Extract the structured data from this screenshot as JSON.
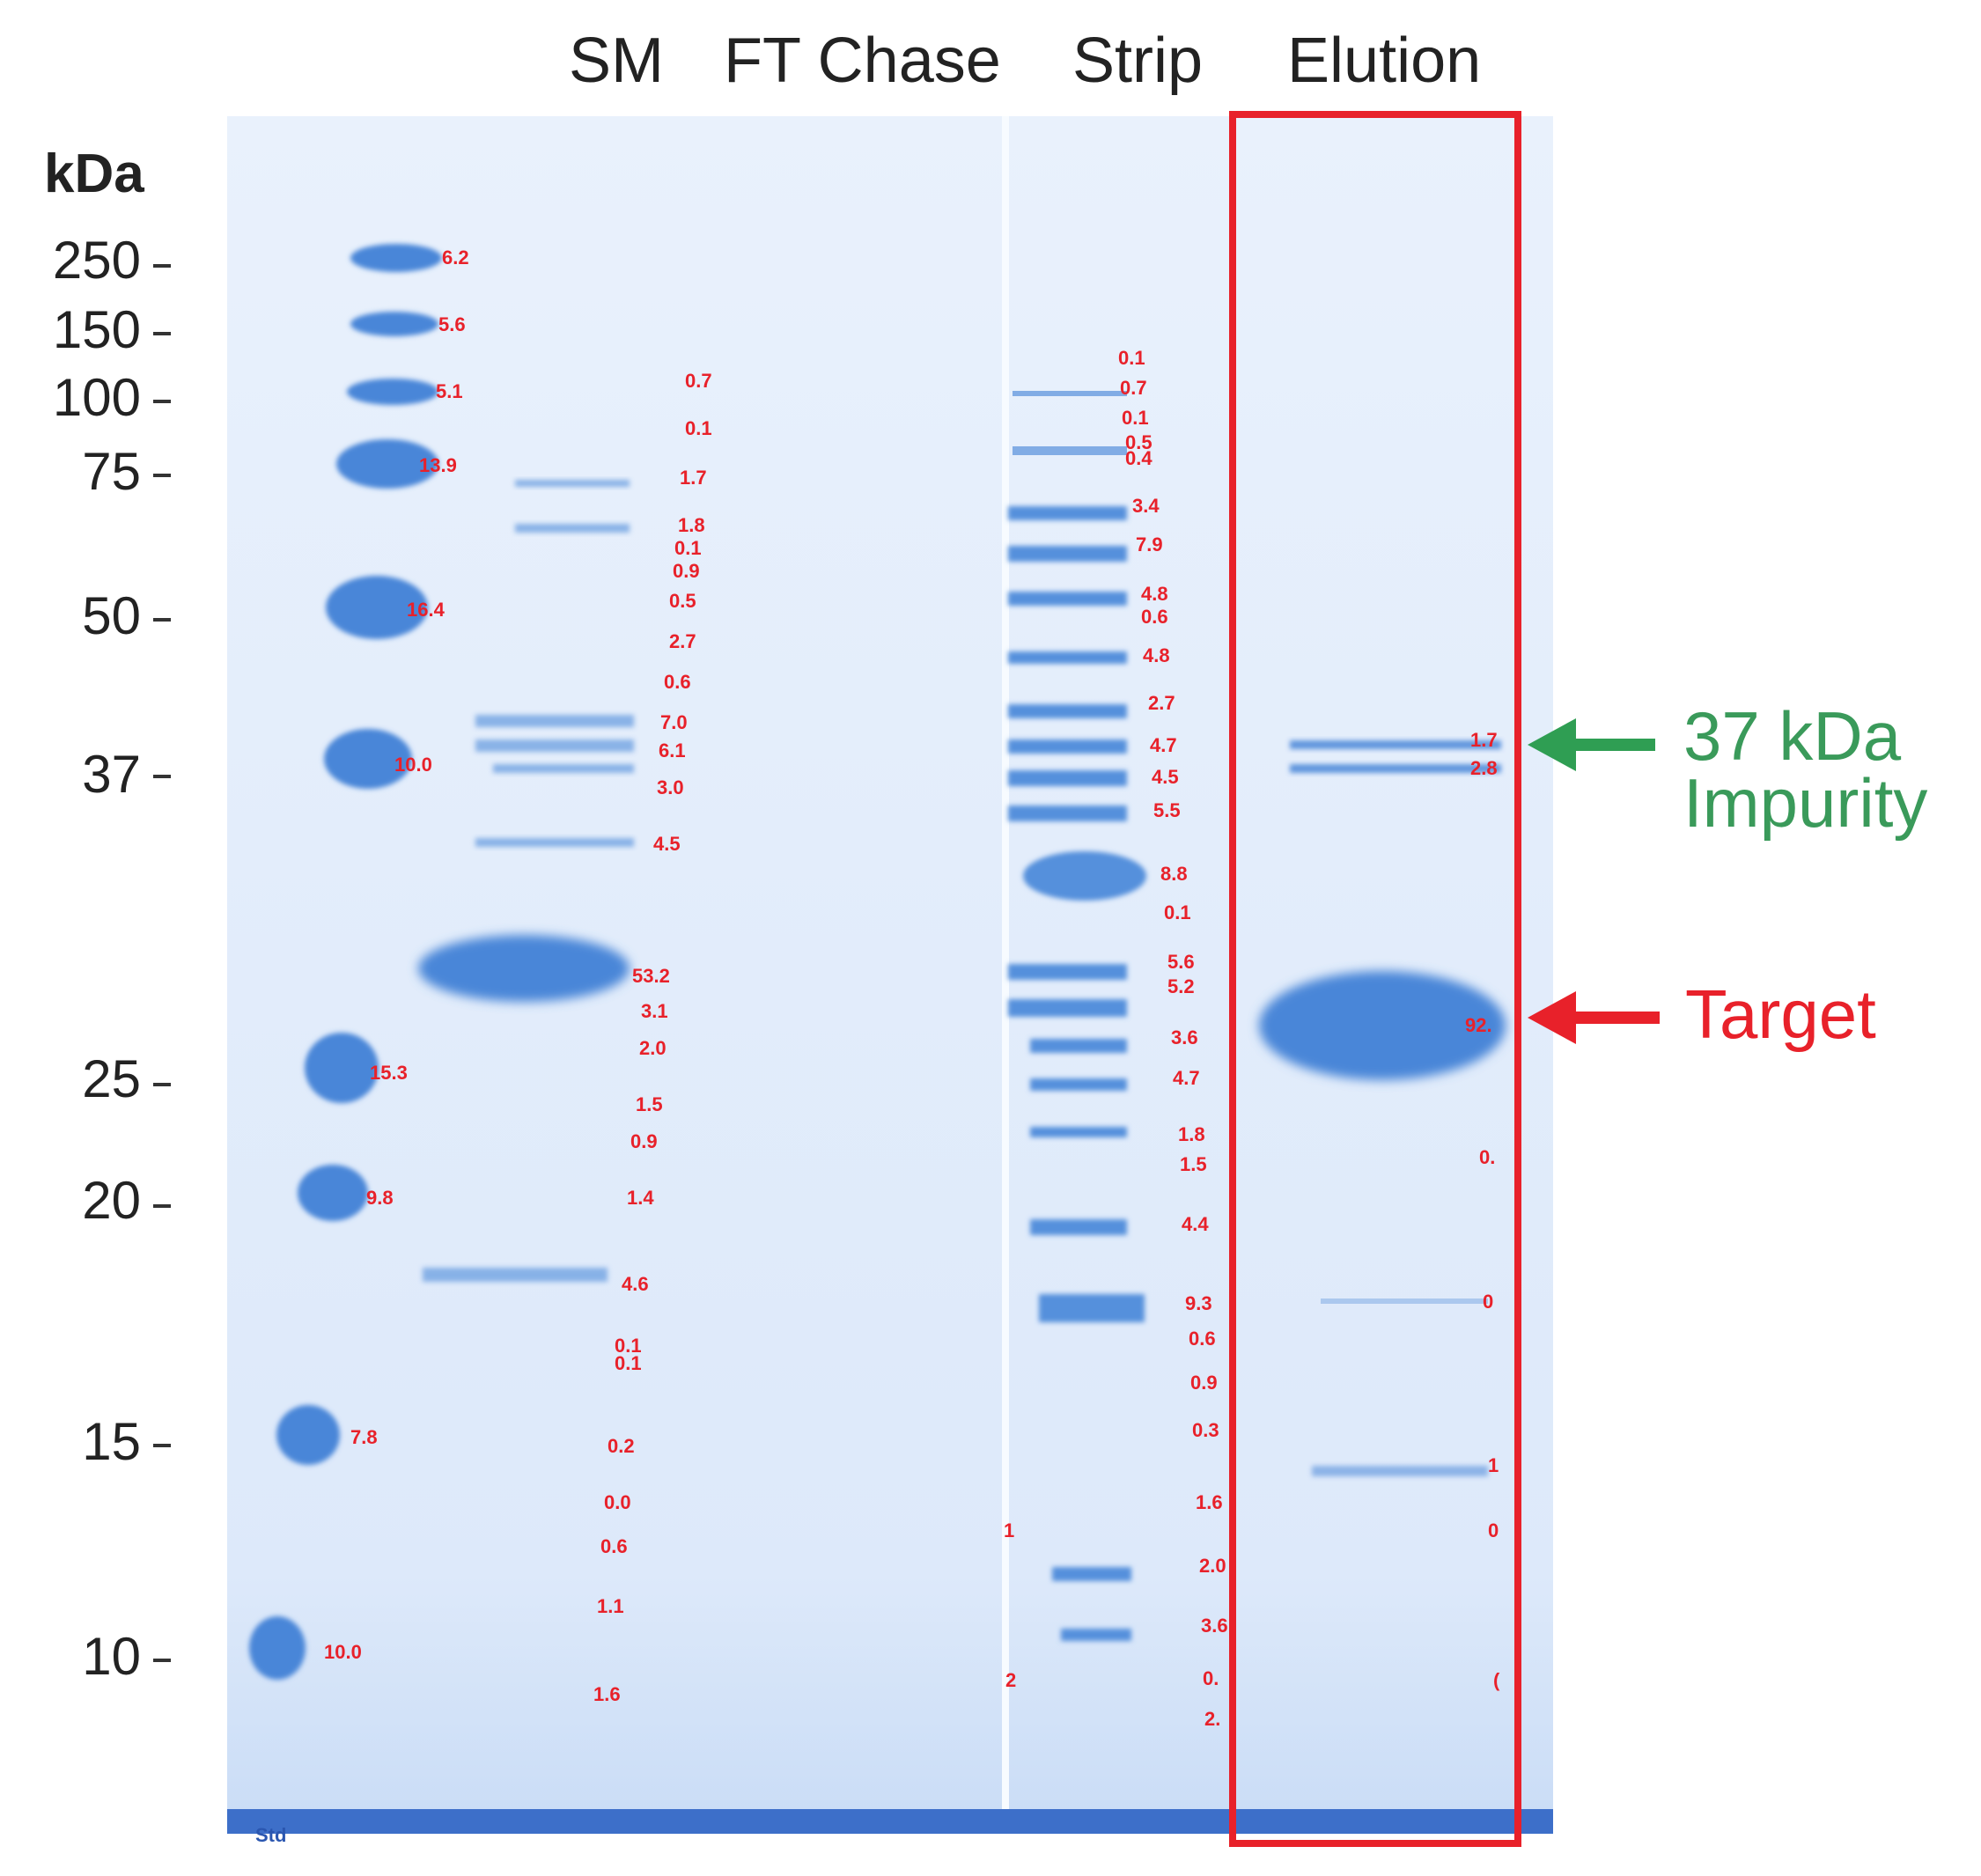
{
  "lane_headers": {
    "sm": "SM",
    "ft_chase": "FT Chase",
    "strip": "Strip",
    "elution": "Elution"
  },
  "ladder": {
    "unit": "kDa",
    "markers": [
      "250",
      "150",
      "100",
      "75",
      "50",
      "37",
      "25",
      "20",
      "15",
      "10"
    ],
    "band_percentages": [
      "6.2",
      "5.6",
      "5.1",
      "13.9",
      "16.4",
      "10.0",
      "15.3",
      "9.8",
      "7.8",
      "10.0"
    ],
    "bottom_label": "Std"
  },
  "lanes": {
    "sm_percentages": [
      "0.7",
      "0.1",
      "1.7",
      "1.8",
      "0.1",
      "0.9",
      "0.5",
      "2.7",
      "0.6",
      "7.0",
      "6.1",
      "3.0",
      "4.5",
      "53.2",
      "3.1",
      "2.0",
      "1.5",
      "0.9",
      "1.4",
      "4.6",
      "0.1",
      "0.1",
      "0.2",
      "0.0",
      "0.6",
      "1.1",
      "1.6"
    ],
    "ft_chase_percentages": [
      "1",
      "2"
    ],
    "strip_percentages": [
      "0.1",
      "0.7",
      "0.1",
      "0.5",
      "0.4",
      "3.4",
      "7.9",
      "4.8",
      "0.6",
      "4.8",
      "2.7",
      "4.7",
      "4.5",
      "5.5",
      "8.8",
      "0.1",
      "5.6",
      "5.2",
      "3.6",
      "4.7",
      "1.8",
      "1.5",
      "4.4",
      "9.3",
      "0.6",
      "0.9",
      "0.3",
      "1.6",
      "2.0",
      "3.6",
      "0.",
      "2."
    ],
    "elution_percentages": [
      "1.7",
      "2.8",
      "92.",
      "0.",
      "0",
      "1",
      "0",
      "("
    ]
  },
  "callouts": {
    "impurity_line1": "37 kDa",
    "impurity_line2": "Impurity",
    "target": "Target"
  },
  "colors": {
    "gel_background": "#e4eefb",
    "band": "#3f7fd6",
    "percent_label": "#e8212a",
    "impurity_arrow": "#2f9e53",
    "target_arrow": "#e8212a"
  }
}
